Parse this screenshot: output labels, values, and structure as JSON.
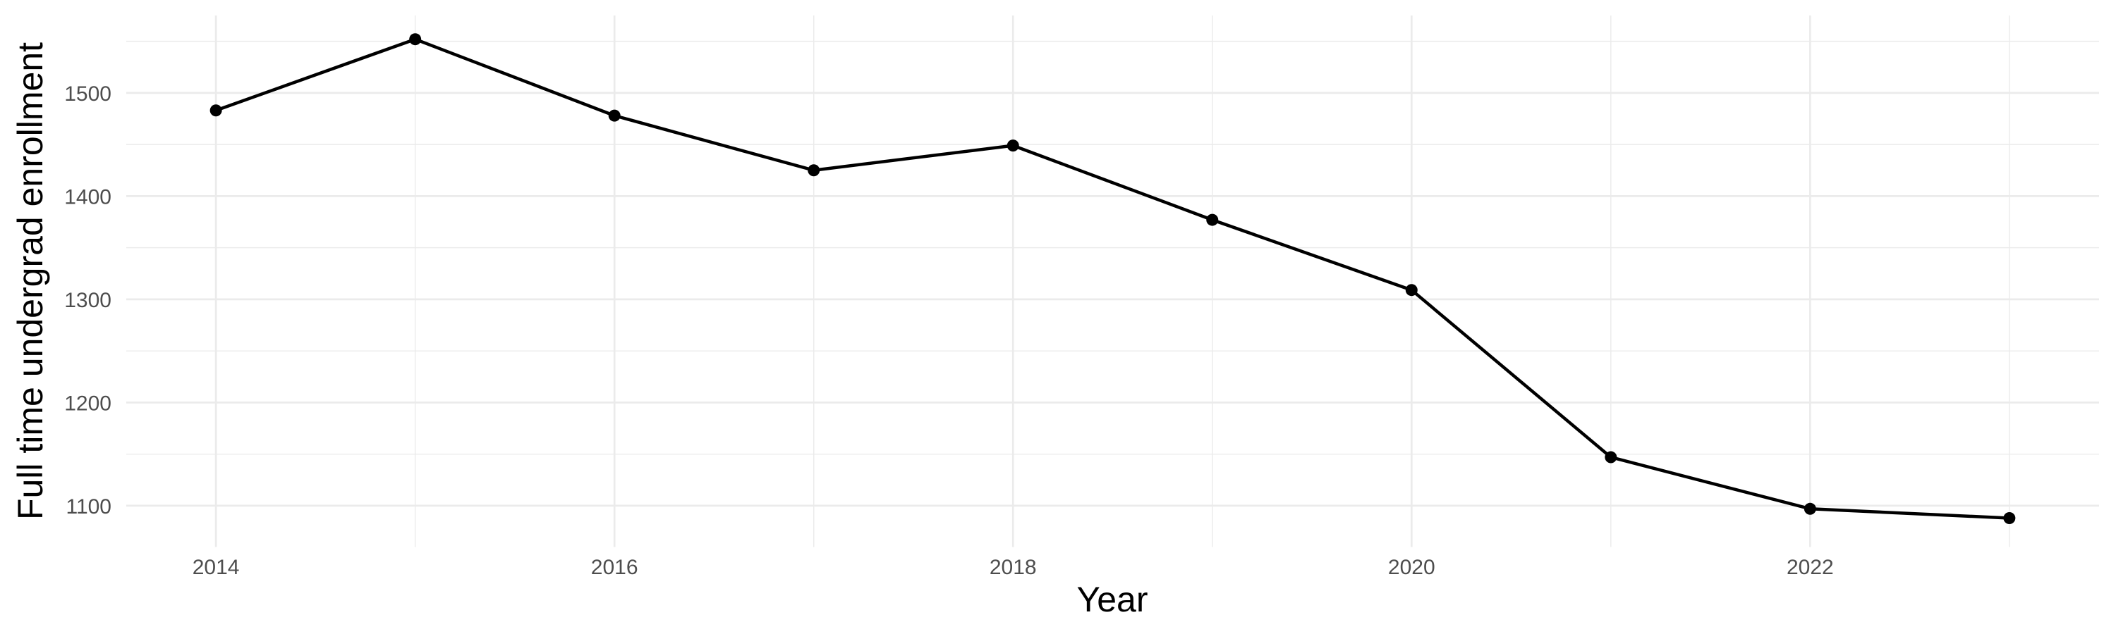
{
  "chart_data": {
    "type": "line",
    "title": "",
    "xlabel": "Year",
    "ylabel": "Full time undergrad enrollment",
    "x": [
      2014,
      2015,
      2016,
      2017,
      2018,
      2019,
      2020,
      2021,
      2022,
      2023
    ],
    "series": [
      {
        "name": "Full time undergrad enrollment",
        "values": [
          1483,
          1552,
          1478,
          1425,
          1449,
          1377,
          1309,
          1147,
          1097,
          1088
        ]
      }
    ],
    "x_ticks_major": [
      2014,
      2016,
      2018,
      2020,
      2022
    ],
    "x_ticks_minor": [
      2015,
      2017,
      2019,
      2021,
      2023
    ],
    "y_ticks_major": [
      1100,
      1200,
      1300,
      1400,
      1500
    ],
    "y_ticks_minor": [
      1150,
      1250,
      1350,
      1450,
      1550
    ],
    "xlim": [
      2013.55,
      2023.45
    ],
    "ylim": [
      1060,
      1575
    ],
    "grid": true,
    "legend_position": "none",
    "style": {
      "background_color": "#ffffff",
      "grid_color": "#ebebeb",
      "line_color": "#000000",
      "point_color": "#000000",
      "tick_label_color": "#4d4d4d",
      "axis_title_color": "#000000"
    }
  }
}
